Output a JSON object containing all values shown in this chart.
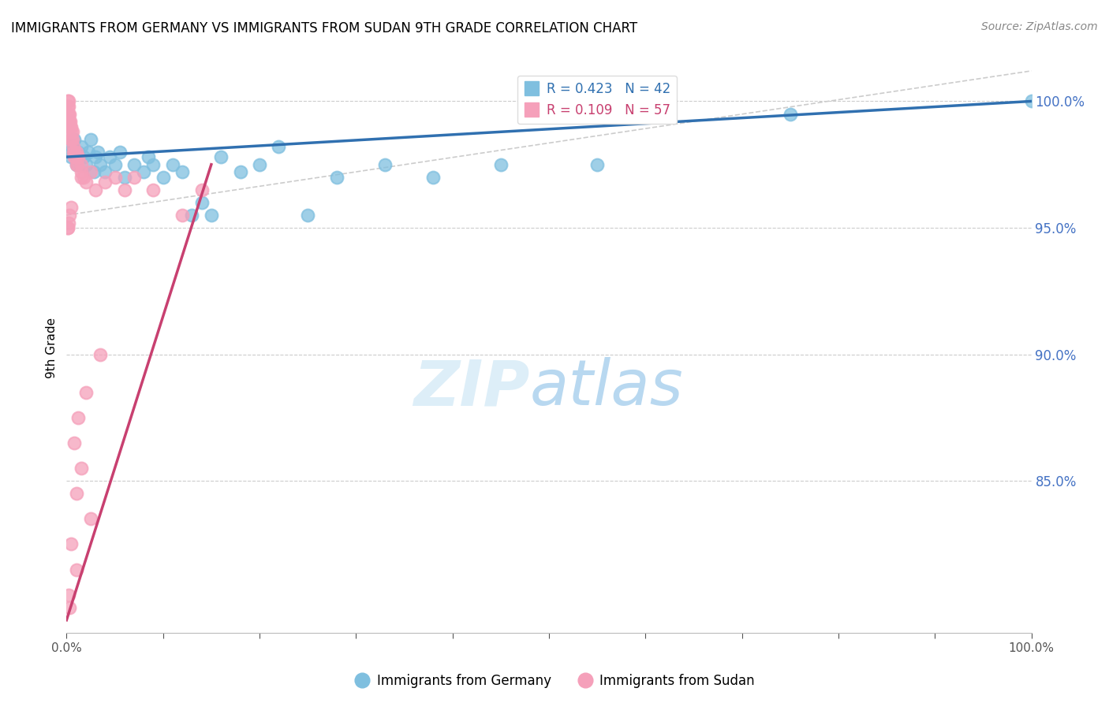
{
  "title": "IMMIGRANTS FROM GERMANY VS IMMIGRANTS FROM SUDAN 9TH GRADE CORRELATION CHART",
  "source": "Source: ZipAtlas.com",
  "ylabel": "9th Grade",
  "legend_blue_label": "Immigrants from Germany",
  "legend_pink_label": "Immigrants from Sudan",
  "R_blue": 0.423,
  "N_blue": 42,
  "R_pink": 0.109,
  "N_pink": 57,
  "blue_color": "#7fbfdf",
  "pink_color": "#f5a0ba",
  "blue_line_color": "#3070b0",
  "pink_line_color": "#c84070",
  "xlim": [
    0,
    100
  ],
  "ylim": [
    79,
    101.5
  ],
  "yticks": [
    100,
    95,
    90,
    85
  ],
  "blue_x": [
    0.3,
    0.5,
    0.5,
    0.8,
    1.0,
    1.2,
    1.5,
    1.8,
    2.0,
    2.3,
    2.5,
    2.8,
    3.0,
    3.2,
    3.5,
    4.0,
    4.5,
    5.0,
    5.5,
    6.0,
    7.0,
    8.0,
    8.5,
    9.0,
    10.0,
    11.0,
    12.0,
    13.0,
    14.0,
    15.0,
    16.0,
    18.0,
    20.0,
    22.0,
    25.0,
    28.0,
    33.0,
    38.0,
    45.0,
    55.0,
    75.0,
    100.0
  ],
  "blue_y": [
    98.0,
    98.2,
    97.8,
    98.5,
    97.5,
    98.0,
    98.2,
    97.8,
    97.5,
    98.0,
    98.5,
    97.2,
    97.8,
    98.0,
    97.5,
    97.2,
    97.8,
    97.5,
    98.0,
    97.0,
    97.5,
    97.2,
    97.8,
    97.5,
    97.0,
    97.5,
    97.2,
    95.5,
    96.0,
    95.5,
    97.8,
    97.2,
    97.5,
    98.2,
    95.5,
    97.0,
    97.5,
    97.0,
    97.5,
    97.5,
    99.5,
    100.0
  ],
  "pink_x": [
    0.1,
    0.1,
    0.1,
    0.2,
    0.2,
    0.2,
    0.2,
    0.3,
    0.3,
    0.3,
    0.4,
    0.4,
    0.5,
    0.5,
    0.5,
    0.5,
    0.6,
    0.6,
    0.7,
    0.7,
    0.8,
    0.8,
    0.9,
    1.0,
    1.0,
    1.1,
    1.2,
    1.5,
    1.5,
    1.8,
    2.0,
    2.5,
    3.0,
    4.0,
    5.0,
    6.0,
    7.0,
    9.0,
    12.0,
    14.0,
    1.5,
    0.5,
    0.3,
    0.2,
    0.1,
    0.1,
    2.0,
    3.5,
    1.2,
    0.8,
    1.5,
    1.0,
    2.5,
    0.5,
    1.0,
    0.2,
    0.3
  ],
  "pink_y": [
    100.0,
    99.8,
    99.5,
    100.0,
    99.8,
    99.5,
    99.2,
    99.5,
    99.2,
    99.0,
    99.2,
    99.0,
    98.8,
    98.5,
    99.0,
    98.5,
    98.8,
    98.5,
    98.2,
    98.0,
    98.0,
    97.8,
    97.8,
    97.5,
    98.0,
    97.5,
    97.8,
    97.2,
    97.5,
    97.0,
    96.8,
    97.2,
    96.5,
    96.8,
    97.0,
    96.5,
    97.0,
    96.5,
    95.5,
    96.5,
    97.0,
    95.8,
    95.5,
    95.2,
    95.0,
    95.0,
    88.5,
    90.0,
    87.5,
    86.5,
    85.5,
    84.5,
    83.5,
    82.5,
    81.5,
    80.5,
    80.0
  ],
  "blue_trendline_x0": 0,
  "blue_trendline_y0": 97.8,
  "blue_trendline_x1": 100,
  "blue_trendline_y1": 100.0,
  "pink_trendline_x0": 0,
  "pink_trendline_y0": 79.5,
  "pink_trendline_x1": 15,
  "pink_trendline_y1": 97.5,
  "diag_x0": 0,
  "diag_y0": 95.5,
  "diag_x1": 100,
  "diag_y1": 101.2
}
